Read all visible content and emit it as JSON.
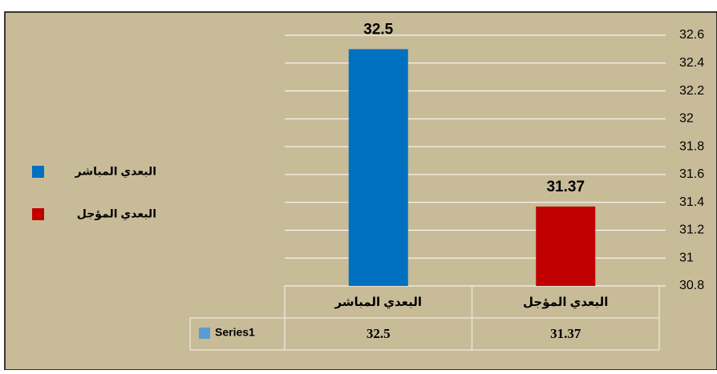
{
  "chart_data": {
    "type": "bar",
    "categories": [
      "البعدي المؤجل",
      "البعدي المباشر"
    ],
    "series": [
      {
        "name": "Series1",
        "color": "#5b9bd5",
        "point_colors": [
          "#c00000",
          "#0070c0"
        ],
        "values": [
          31.37,
          32.5
        ]
      }
    ],
    "ylim": [
      30.8,
      32.6
    ],
    "yticks": [
      30.8,
      31,
      31.2,
      31.4,
      31.6,
      31.8,
      32,
      32.2,
      32.4,
      32.6
    ],
    "grid": true,
    "y_axis_side": "right",
    "legend": "left",
    "data_table": true
  }
}
